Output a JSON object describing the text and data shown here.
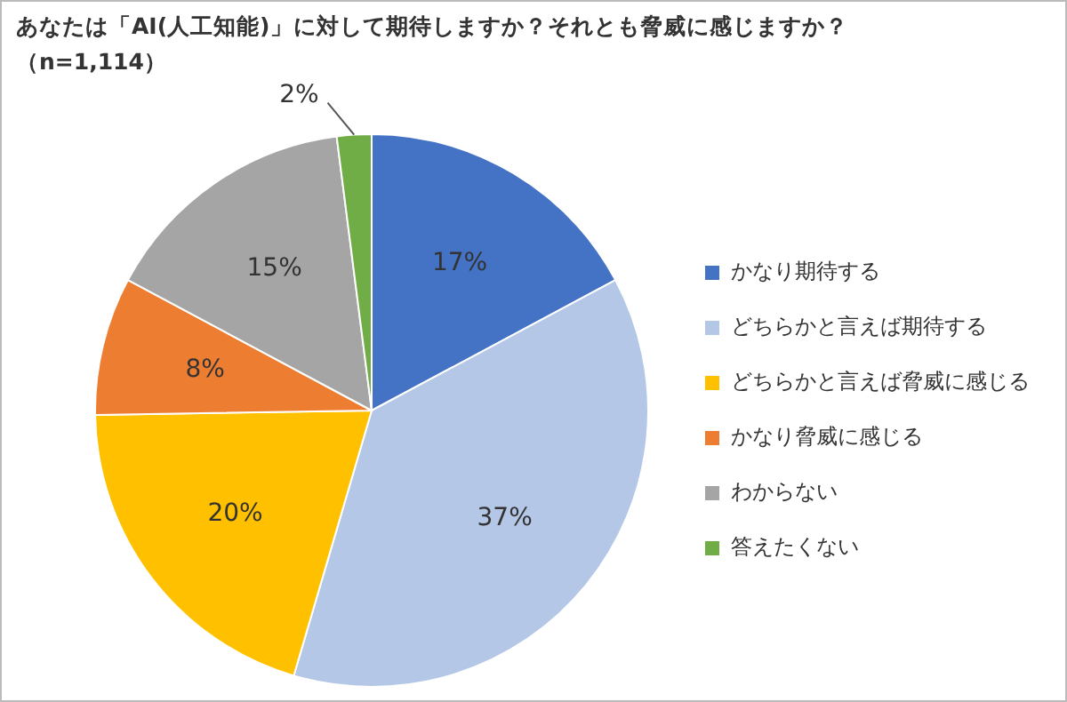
{
  "chart_data": {
    "type": "pie",
    "title": "あなたは「AI(人工知能)」に対して期待しますか？それとも脅威に感じますか？",
    "subtitle": "（n=1,114）",
    "categories": [
      "かなり期待する",
      "どちらかと言えば期待する",
      "どちらかと言えば脅威に感じる",
      "かなり脅威に感じる",
      "わからない",
      "答えたくない"
    ],
    "values": [
      17,
      37,
      20,
      8,
      15,
      2
    ],
    "colors": [
      "#4472c4",
      "#b4c7e7",
      "#ffc000",
      "#ed7d31",
      "#a5a5a5",
      "#70ad47"
    ],
    "value_labels": [
      "17%",
      "37%",
      "20%",
      "8%",
      "15%",
      "2%"
    ],
    "legend": "right"
  }
}
